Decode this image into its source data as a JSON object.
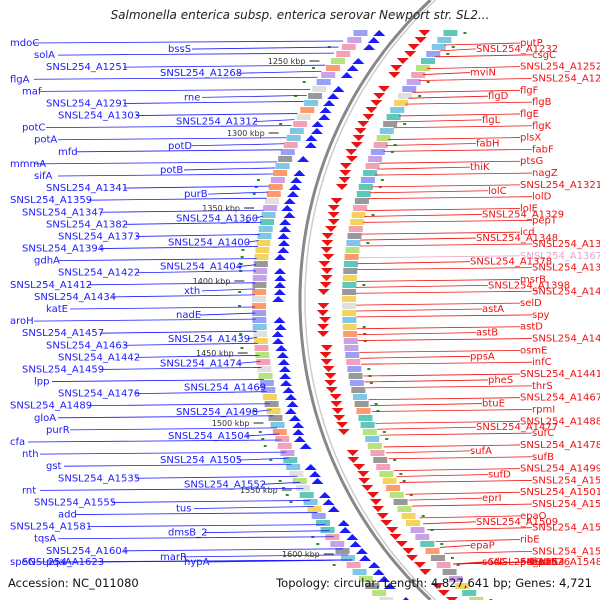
{
  "title": "Salmonella enterica subsp. enterica serovar Newport str. SL2...",
  "footer": {
    "accession": "Accession: NC_011080",
    "topology": "Topology: circular; Length: 4,827,641 bp; Genes: 4,721"
  },
  "colors": {
    "left_strand": "#1a1aff",
    "right_strand": "#ee1111",
    "faded": "#e8a6cc",
    "backbone": "#888888",
    "tick_mark": "#2e8b2e"
  },
  "ticks": [
    "1250 kbp",
    "1300 kbp",
    "1350 kbp",
    "1400 kbp",
    "1450 kbp",
    "1500 kbp",
    "1550 kbp",
    "1600 kbp"
  ],
  "left_labels": [
    "mdoC",
    "bssS",
    "solA",
    "SNSL254_A1251",
    "SNSL254_A1268",
    "flgA",
    "maf",
    "rne",
    "SNSL254_A1291",
    "SNSL254_A1303",
    "SNSL254_A1312",
    "potC",
    "potA",
    "potD",
    "mfd",
    "mmmA",
    "potB",
    "sifA",
    "SNSL254_A1341",
    "purB",
    "SNSL254_A1359",
    "SNSL254_A1347",
    "SNSL254_A1360",
    "SNSL254_A1382",
    "SNSL254_A1373",
    "SNSL254_A1400",
    "SNSL254_A1394",
    "gdhA",
    "SNSL254_A1404",
    "SNSL254_A1422",
    "SNSL254_A1412",
    "xth",
    "SNSL254_A1434",
    "katE",
    "nadE",
    "aroH",
    "SNSL254_A1457",
    "SNSL254_A1439",
    "SNSL254_A1463",
    "SNSL254_A1442",
    "SNSL254_A1474",
    "SNSL254_A1459",
    "lpp",
    "SNSL254_A1469",
    "SNSL254_A1476",
    "SNSL254_A1489",
    "SNSL254_A1498",
    "gloA",
    "purR",
    "SNSL254_A1504",
    "cfa",
    "nth",
    "SNSL254_A1505",
    "gst",
    "SNSL254_A1535",
    "SNSL254_A1552",
    "rnt",
    "SNSL254_A1555",
    "tus",
    "add",
    "SNSL254_A1581",
    "dmsB_2",
    "tqsA",
    "SNSL254_A1604",
    "marR",
    "speG",
    "SNSL254_A1623",
    "hypA",
    "pqaA"
  ],
  "right_labels": [
    "putP",
    "SNSL254_A1232",
    "csgC",
    "SNSL254_A1252",
    "mviN",
    "SNSL254_A1264",
    "flgF",
    "flgD",
    "flgB",
    "flgE",
    "flgL",
    "flgK",
    "plsX",
    "fabH",
    "fabF",
    "ptsG",
    "thiK",
    "nagZ",
    "SNSL254_A1321",
    "lolC",
    "lolD",
    "lolE",
    "SNSL254_A1329",
    "pepT",
    "icd",
    "SNSL254_A1348",
    "SNSL254_A1361",
    "SNSL254_A1367",
    "SNSL254_A1378",
    "SNSL254_A1393",
    "msrB",
    "SNSL254_A1398",
    "SNSL254_A1407",
    "selD",
    "astA",
    "spy",
    "astD",
    "astB",
    "SNSL254_A1437",
    "osmE",
    "ppsA",
    "infC",
    "SNSL254_A1441",
    "pheS",
    "thrS",
    "SNSL254_A1467",
    "btuE",
    "rpmI",
    "SNSL254_A1488",
    "SNSL254_A1477",
    "sufC",
    "SNSL254_A1478",
    "sufA",
    "sufB",
    "SNSL254_A1499",
    "sufD",
    "SNSL254_A1500",
    "SNSL254_A1501",
    "eprI",
    "SNSL254_A1506",
    "epaO",
    "SNSL254_A1509",
    "SNSL254_A1560",
    "ribE",
    "epaP",
    "SNSL254_A1521",
    "SNSL254_A1548",
    "SNSL254_A1526",
    "fumC",
    "pdxH",
    "sodC",
    "epaR"
  ]
}
